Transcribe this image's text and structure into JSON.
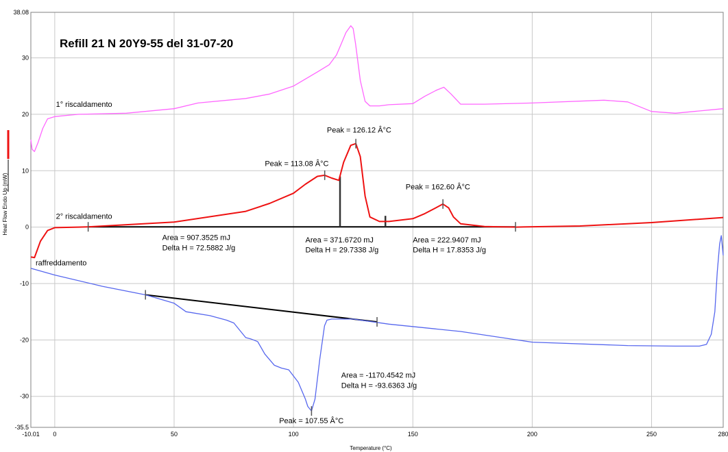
{
  "chart_data": {
    "type": "line",
    "title": "Refill 21 N 20Y9-55 del 31-07-20",
    "xlabel": "Temperature (°C)",
    "ylabel": "Heat Flow Endo Up (mW)",
    "xlim": [
      -10.01,
      280
    ],
    "ylim": [
      -35.5,
      38.08
    ],
    "grid": true,
    "x_tick_values": [
      -10.01,
      0,
      50,
      100,
      150,
      200,
      250,
      280
    ],
    "x_tick_labels": [
      "-10.01",
      "0",
      "50",
      "100",
      "150",
      "200",
      "250",
      "280"
    ],
    "y_tick_values": [
      38.08,
      30,
      20,
      10,
      0,
      -10,
      -20,
      -30,
      -35.5
    ],
    "y_tick_labels": [
      "38.08",
      "30",
      "20",
      "10",
      "0",
      "-10",
      "-20",
      "-30",
      "-35.5"
    ],
    "series": [
      {
        "name": "1° riscaldamento",
        "color": "#ff66ff",
        "x": [
          -10.01,
          -9.5,
          -8.5,
          -7,
          -5,
          -3,
          0,
          10,
          30,
          50,
          60,
          80,
          90,
          100,
          110,
          115,
          118,
          120,
          122,
          124,
          125,
          126,
          128,
          130,
          132,
          136,
          140,
          150,
          155,
          160,
          163,
          166,
          170,
          180,
          200,
          230,
          240,
          250,
          260,
          270,
          280
        ],
        "y": [
          15.5,
          13.8,
          13.4,
          15,
          17.5,
          19.2,
          19.6,
          20,
          20.2,
          21,
          22,
          22.8,
          23.6,
          25,
          27.5,
          28.8,
          30.5,
          32.5,
          34.5,
          35.7,
          35.2,
          32.5,
          26,
          22.3,
          21.5,
          21.5,
          21.7,
          21.9,
          23.2,
          24.3,
          24.8,
          23.6,
          21.8,
          21.8,
          22,
          22.5,
          22.2,
          20.5,
          20.2,
          20.6,
          21
        ]
      },
      {
        "name": "2° riscaldamento",
        "color": "#ee1111",
        "x": [
          -10.01,
          -8.5,
          -6,
          -3,
          0,
          10,
          14,
          50,
          80,
          90,
          100,
          105,
          110,
          113.08,
          116,
          119,
          121,
          124,
          126.12,
          128,
          130,
          132,
          136,
          140,
          150,
          155,
          160,
          162.6,
          165,
          167,
          170,
          180,
          193,
          220,
          250,
          280
        ],
        "y": [
          -5.3,
          -5.4,
          -2.5,
          -0.6,
          -0.1,
          0,
          0.05,
          0.9,
          2.8,
          4.2,
          6,
          7.6,
          9,
          9.2,
          8.7,
          8.3,
          11.5,
          14.5,
          14.8,
          12.5,
          5.5,
          1.8,
          1,
          1,
          1.5,
          2.4,
          3.5,
          4.1,
          3.4,
          1.8,
          0.6,
          0.1,
          0,
          0.2,
          0.8,
          1.7
        ]
      },
      {
        "name": "raffreddamento",
        "color": "#5566ee",
        "x": [
          -10.01,
          0,
          20,
          38,
          50,
          55,
          65,
          72,
          75,
          80,
          82,
          85,
          88,
          92,
          95,
          98,
          102,
          105,
          106,
          107.55,
          109,
          111,
          113,
          114,
          116,
          125,
          140,
          170,
          200,
          240,
          260,
          270,
          273,
          275,
          276.5,
          277.5,
          278.5,
          279.2,
          280
        ],
        "y": [
          -7.3,
          -8.5,
          -10.5,
          -12,
          -13.5,
          -15,
          -15.7,
          -16.5,
          -17,
          -19.6,
          -19.8,
          -20.3,
          -22.5,
          -24.5,
          -25,
          -25.3,
          -27.5,
          -30.5,
          -31.8,
          -32.6,
          -30.5,
          -23.5,
          -17.5,
          -16.5,
          -16.3,
          -16.3,
          -17.2,
          -18.5,
          -20.4,
          -21,
          -21.1,
          -21.1,
          -20.8,
          -19,
          -15,
          -8,
          -3,
          -1.5,
          -5
        ]
      }
    ],
    "baselines": [
      {
        "x": [
          14,
          193
        ],
        "y": [
          0.05,
          0.05
        ]
      },
      {
        "x": [
          38,
          135
        ],
        "y": [
          -12,
          -16.8
        ]
      }
    ],
    "partition_lines": [
      {
        "x": 119.5,
        "y_from": 0.05,
        "y_to": 9
      },
      {
        "x": 138.5,
        "y_from": 0.05,
        "y_to": 2
      }
    ],
    "markers": [
      {
        "x": 14,
        "y": 0.05
      },
      {
        "x": 193,
        "y": 0.05
      },
      {
        "x": 113.08,
        "y": 9.2
      },
      {
        "x": 126.12,
        "y": 14.8
      },
      {
        "x": 162.6,
        "y": 4.1
      },
      {
        "x": 38,
        "y": -12
      },
      {
        "x": 135,
        "y": -16.8
      },
      {
        "x": 107.55,
        "y": -32.6
      }
    ],
    "annotations": [
      {
        "text": "1° riscaldamento",
        "x": 0.5,
        "y": 21.3,
        "cls": "annot-small"
      },
      {
        "text": "2° riscaldamento",
        "x": 0.5,
        "y": 1.5,
        "cls": "annot-small"
      },
      {
        "text": "raffreddamento",
        "x": -8,
        "y": -6.8,
        "cls": "annot-small"
      },
      {
        "text": "Peak = 126.12 Â°C",
        "x": 114,
        "y": 16.8,
        "cls": "annot"
      },
      {
        "text": "Peak = 113.08 Â°C",
        "x": 88,
        "y": 10.8,
        "cls": "annot"
      },
      {
        "text": "Peak = 162.60 Â°C",
        "x": 147,
        "y": 6.7,
        "cls": "annot"
      },
      {
        "text": "Area = 907.3525 mJ",
        "x": 45,
        "y": -2.3,
        "cls": "annot"
      },
      {
        "text": "Delta H = 72.5882 J/g",
        "x": 45,
        "y": -4.1,
        "cls": "annot"
      },
      {
        "text": "Area = 371.6720 mJ",
        "x": 105,
        "y": -2.7,
        "cls": "annot"
      },
      {
        "text": "Delta H = 29.7338 J/g",
        "x": 105,
        "y": -4.5,
        "cls": "annot"
      },
      {
        "text": "Area = 222.9407 mJ",
        "x": 150,
        "y": -2.7,
        "cls": "annot"
      },
      {
        "text": "Delta H = 17.8353 J/g",
        "x": 150,
        "y": -4.5,
        "cls": "annot"
      },
      {
        "text": "Area = -1170.4542 mJ",
        "x": 120,
        "y": -26.7,
        "cls": "annot"
      },
      {
        "text": "Delta H = -93.6363 J/g",
        "x": 120,
        "y": -28.5,
        "cls": "annot"
      },
      {
        "text": "Peak = 107.55 Â°C",
        "x": 94,
        "y": -34.8,
        "cls": "annot"
      }
    ]
  }
}
